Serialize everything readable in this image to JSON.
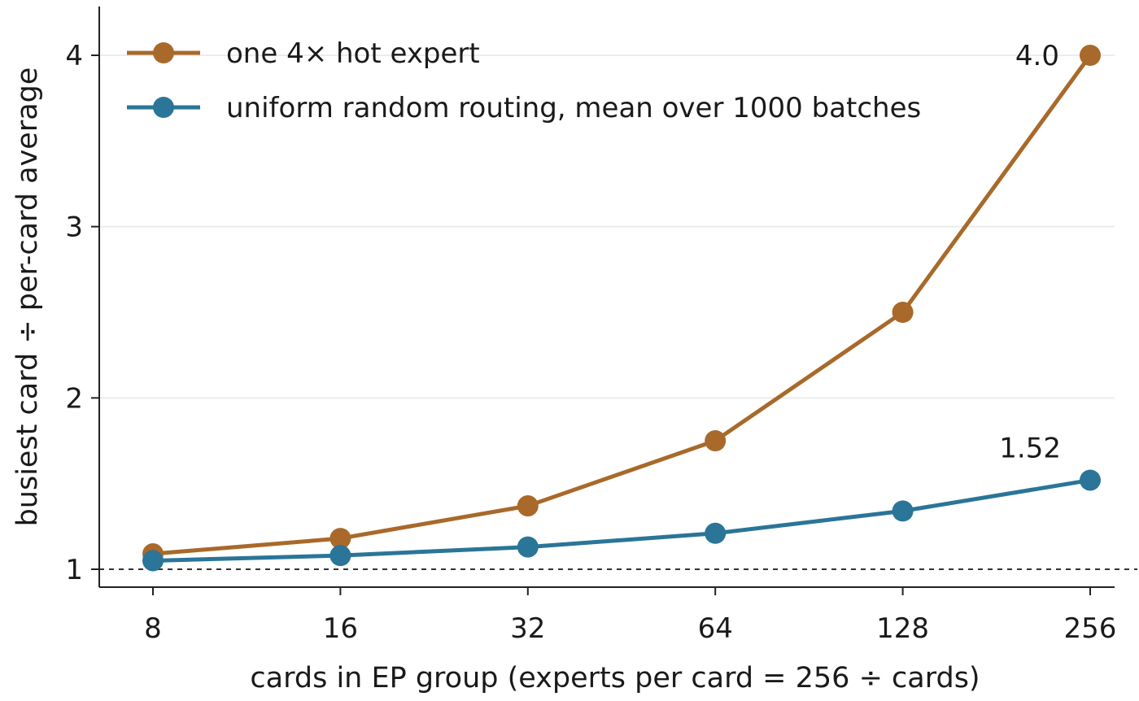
{
  "chart_data": {
    "type": "line",
    "x_scale": "log2",
    "categories": [
      "8",
      "16",
      "32",
      "64",
      "128",
      "256"
    ],
    "x": [
      8,
      16,
      32,
      64,
      128,
      256
    ],
    "xlabel": "cards in EP group (experts per card = 256 ÷ cards)",
    "ylabel": "busiest card ÷ per-card average",
    "ylim": [
      1,
      4.3
    ],
    "yticks": [
      1,
      2,
      3,
      4
    ],
    "ytick_labels": [
      "1",
      "2",
      "3",
      "4"
    ],
    "grid": "horizontal",
    "reference_line": 1,
    "legend_position": "top-left",
    "series": [
      {
        "name": "one 4× hot expert",
        "color": "#a8692a",
        "values": [
          1.09,
          1.18,
          1.37,
          1.75,
          2.5,
          4.0
        ],
        "end_label": "4.0"
      },
      {
        "name": "uniform random routing, mean over 1000 batches",
        "color": "#2a7598",
        "values": [
          1.05,
          1.08,
          1.13,
          1.21,
          1.34,
          1.52
        ],
        "end_label": "1.52"
      }
    ]
  }
}
